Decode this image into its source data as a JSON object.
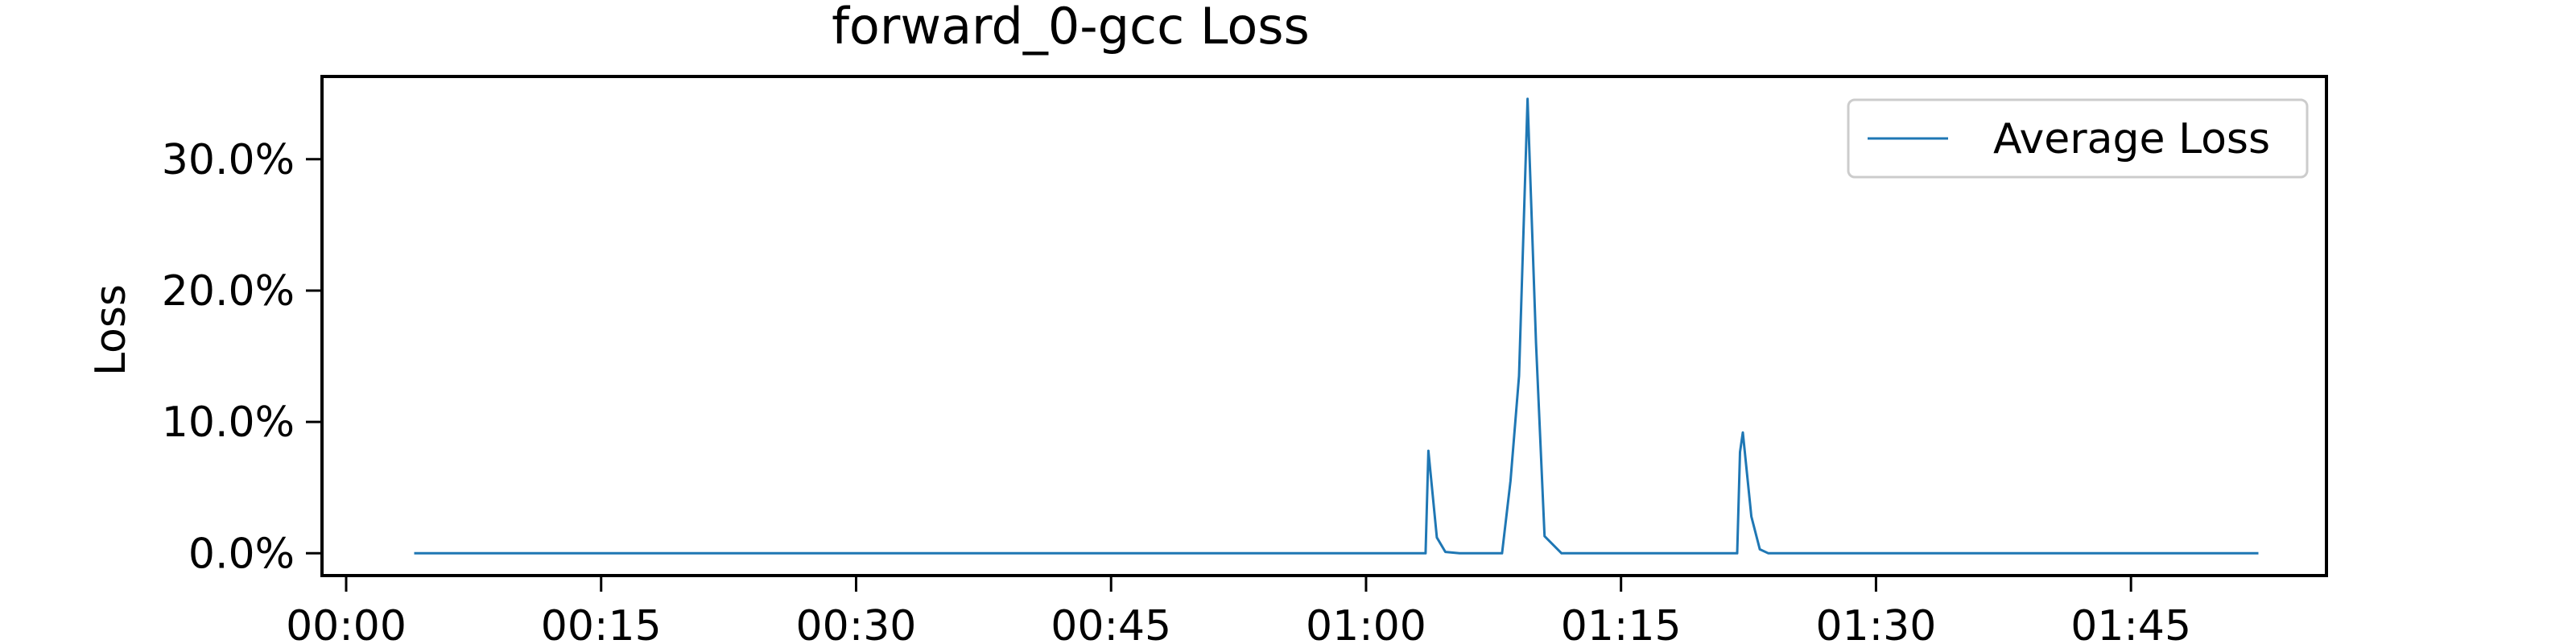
{
  "chart_data": {
    "type": "line",
    "title": "forward_0-gcc Loss",
    "xlabel": "",
    "ylabel": "Loss",
    "xlim": [
      "00:00:00",
      "01:56:30"
    ],
    "ylim": [
      -1.7,
      36.3
    ],
    "grid": false,
    "legend_position": "top-right",
    "x_ticks": [
      "00:00",
      "00:15",
      "00:30",
      "00:45",
      "01:00",
      "01:15",
      "01:30",
      "01:45"
    ],
    "y_ticks": [
      {
        "value": 0,
        "label": "0.0%"
      },
      {
        "value": 10,
        "label": "10.0%"
      },
      {
        "value": 20,
        "label": "20.0%"
      },
      {
        "value": 30,
        "label": "30.0%"
      }
    ],
    "series": [
      {
        "name": "Average Loss",
        "color": "#1f77b4",
        "points": [
          {
            "x": "00:04:00",
            "y": 0
          },
          {
            "x": "01:03:30",
            "y": 0
          },
          {
            "x": "01:03:40",
            "y": 7.8
          },
          {
            "x": "01:04:10",
            "y": 1.2
          },
          {
            "x": "01:04:40",
            "y": 0.1
          },
          {
            "x": "01:05:30",
            "y": 0
          },
          {
            "x": "01:08:00",
            "y": 0
          },
          {
            "x": "01:08:30",
            "y": 5.5
          },
          {
            "x": "01:09:00",
            "y": 13.5
          },
          {
            "x": "01:09:30",
            "y": 34.6
          },
          {
            "x": "01:10:00",
            "y": 16
          },
          {
            "x": "01:10:30",
            "y": 1.3
          },
          {
            "x": "01:11:30",
            "y": 0
          },
          {
            "x": "01:21:50",
            "y": 0
          },
          {
            "x": "01:22:00",
            "y": 7.7
          },
          {
            "x": "01:22:10",
            "y": 9.2
          },
          {
            "x": "01:22:40",
            "y": 2.8
          },
          {
            "x": "01:23:10",
            "y": 0.3
          },
          {
            "x": "01:23:40",
            "y": 0
          },
          {
            "x": "01:52:30",
            "y": 0
          }
        ]
      }
    ]
  }
}
